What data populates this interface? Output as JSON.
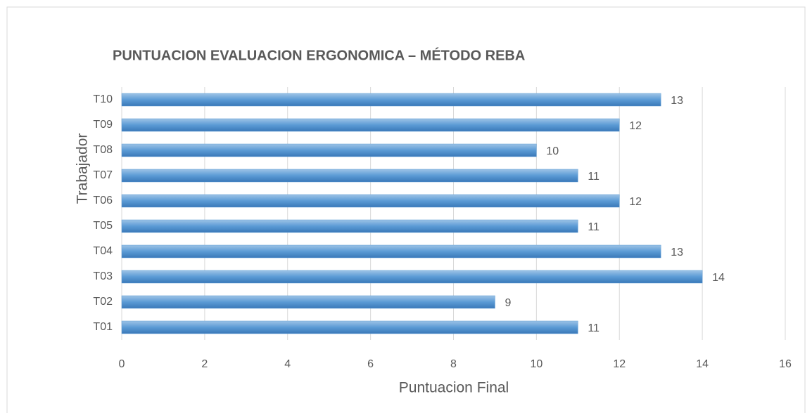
{
  "chart_data": {
    "type": "bar",
    "orientation": "horizontal",
    "title": "PUNTUACION EVALUACION ERGONOMICA – MÉTODO REBA",
    "x_label": "Puntuacion Final",
    "y_label": "Trabajador",
    "categories": [
      "T01",
      "T02",
      "T03",
      "T04",
      "T05",
      "T06",
      "T07",
      "T08",
      "T09",
      "T10"
    ],
    "values": [
      11,
      9,
      14,
      13,
      11,
      12,
      11,
      10,
      12,
      13
    ],
    "color": "#5b9bd5",
    "xlim": [
      0,
      16
    ],
    "xticks": [
      0,
      2,
      4,
      6,
      8,
      10,
      12,
      14,
      16
    ],
    "grid": true
  }
}
